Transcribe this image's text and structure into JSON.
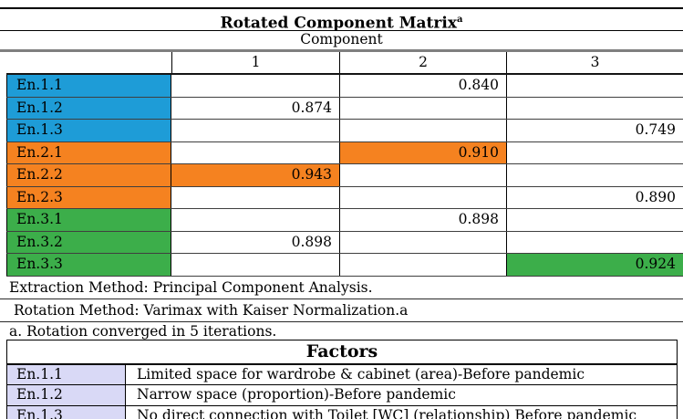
{
  "matrix_table": {
    "title": "Rotated Component Matrix",
    "title_superscript": "a",
    "header_group_label": "Component",
    "column_headers": [
      "1",
      "2",
      "3"
    ],
    "rows": [
      {
        "label": "En.1.1",
        "group": "blue",
        "values": [
          "",
          "0.840",
          ""
        ],
        "highlight": null
      },
      {
        "label": "En.1.2",
        "group": "blue",
        "values": [
          "0.874",
          "",
          ""
        ],
        "highlight": null
      },
      {
        "label": "En.1.3",
        "group": "blue",
        "values": [
          "",
          "",
          "0.749"
        ],
        "highlight": null
      },
      {
        "label": "En.2.1",
        "group": "orange",
        "values": [
          "",
          "0.910",
          ""
        ],
        "highlight": 1
      },
      {
        "label": "En.2.2",
        "group": "orange",
        "values": [
          "0.943",
          "",
          ""
        ],
        "highlight": 0
      },
      {
        "label": "En.2.3",
        "group": "orange",
        "values": [
          "",
          "",
          "0.890"
        ],
        "highlight": null
      },
      {
        "label": "En.3.1",
        "group": "green",
        "values": [
          "",
          "0.898",
          ""
        ],
        "highlight": null
      },
      {
        "label": "En.3.2",
        "group": "green",
        "values": [
          "0.898",
          "",
          ""
        ],
        "highlight": null
      },
      {
        "label": "En.3.3",
        "group": "green",
        "values": [
          "",
          "",
          "0.924"
        ],
        "highlight": 2
      }
    ],
    "notes": [
      "Extraction Method: Principal Component Analysis.",
      "Rotation Method: Varimax with Kaiser Normalization.a",
      "a. Rotation converged in 5 iterations."
    ]
  },
  "factors_table": {
    "title": "Factors",
    "rows": [
      {
        "label": "En.1.1",
        "description": "Limited space for wardrobe & cabinet (area)-Before pandemic"
      },
      {
        "label": "En.1.2",
        "description": "Narrow space (proportion)-Before pandemic"
      },
      {
        "label": "En.1.3",
        "description": "No direct connection with Toilet [WC] (relationship) Before pandemic"
      }
    ]
  },
  "colors": {
    "blue": "#1E9CD7",
    "orange": "#F58220",
    "green": "#3CAE4A",
    "lavender": "#D9D9F6"
  }
}
